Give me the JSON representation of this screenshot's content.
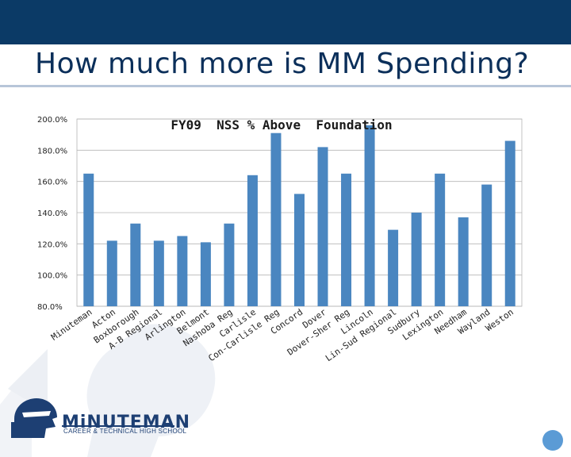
{
  "slide": {
    "title": "How much more is MM Spending?",
    "logo_name": "MiNUTEMAN",
    "logo_tagline": "CAREER & TECHNICAL HIGH SCHOOL"
  },
  "colors": {
    "header": "#0b3a66",
    "bar": "#4a86c0",
    "title_text": "#0b2f5a"
  },
  "chart_data": {
    "type": "bar",
    "title": "FY09  NSS % Above  Foundation",
    "xlabel": "",
    "ylabel": "",
    "ylim": [
      80,
      200
    ],
    "ytick_values": [
      80,
      100,
      120,
      140,
      160,
      180,
      200
    ],
    "ytick_labels": [
      "80.0%",
      "100.0%",
      "120.0%",
      "140.0%",
      "160.0%",
      "180.0%",
      "200.0%"
    ],
    "grid": true,
    "categories": [
      "Minuteman",
      "Acton",
      "Boxborough",
      "A-B Regional",
      "Arlington",
      "Belmont",
      "Nashoba Reg",
      "Carlisle",
      "Con-Carlisle Reg",
      "Concord",
      "Dover",
      "Dover-Sher Reg",
      "Lincoln",
      "Lin-Sud Regional",
      "Sudbury",
      "Lexington",
      "Needham",
      "Wayland",
      "Weston"
    ],
    "values": [
      165,
      122,
      133,
      122,
      125,
      121,
      133,
      164,
      191,
      152,
      182,
      165,
      196,
      129,
      140,
      165,
      137,
      158,
      186
    ]
  }
}
